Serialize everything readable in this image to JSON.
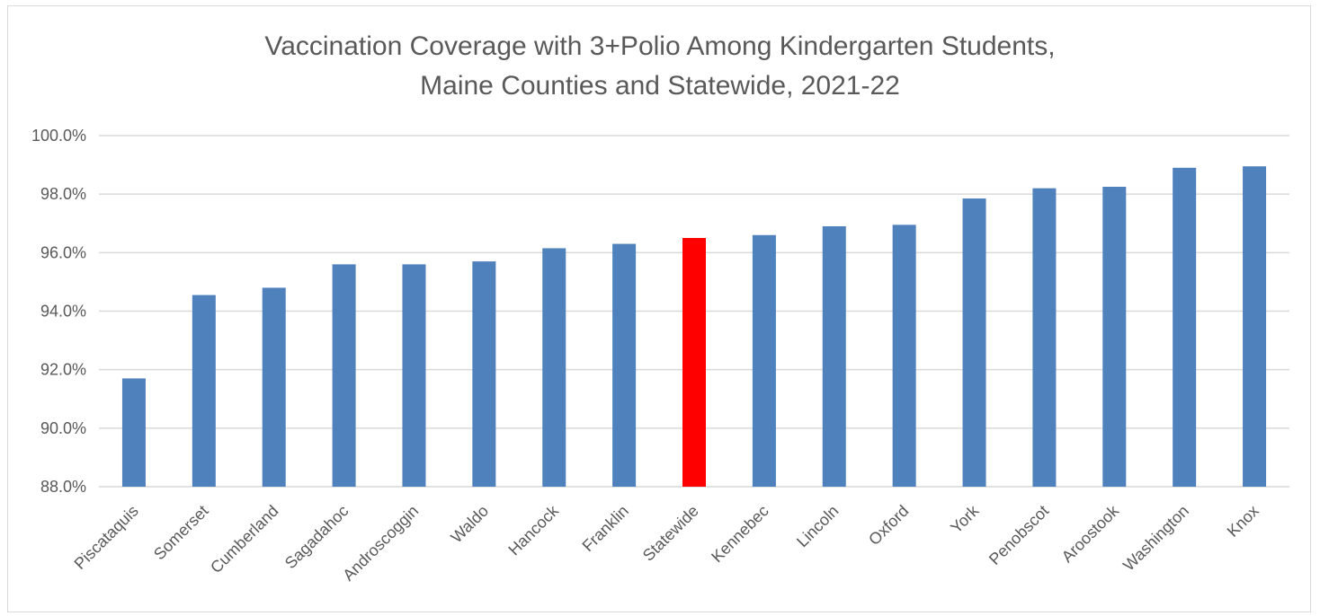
{
  "chart_data": {
    "type": "bar",
    "title_line1": "Vaccination Coverage with 3+Polio Among Kindergarten Students,",
    "title_line2": "Maine Counties and Statewide, 2021-22",
    "xlabel": "",
    "ylabel": "",
    "ylim": [
      88.0,
      100.0
    ],
    "yticks": [
      88.0,
      90.0,
      92.0,
      94.0,
      96.0,
      98.0,
      100.0
    ],
    "ytick_labels": [
      "88.0%",
      "90.0%",
      "92.0%",
      "94.0%",
      "96.0%",
      "98.0%",
      "100.0%"
    ],
    "grid": true,
    "bar_color": "#4F81BD",
    "highlight_color": "#FF0000",
    "highlight_category": "Statewide",
    "categories": [
      "Piscataquis",
      "Somerset",
      "Cumberland",
      "Sagadahoc",
      "Androscoggin",
      "Waldo",
      "Hancock",
      "Franklin",
      "Statewide",
      "Kennebec",
      "Lincoln",
      "Oxford",
      "York",
      "Penobscot",
      "Aroostook",
      "Washington",
      "Knox"
    ],
    "values": [
      91.7,
      94.55,
      94.8,
      95.6,
      95.6,
      95.7,
      96.15,
      96.3,
      96.5,
      96.6,
      96.9,
      96.95,
      97.85,
      98.2,
      98.25,
      98.9,
      98.95
    ]
  }
}
